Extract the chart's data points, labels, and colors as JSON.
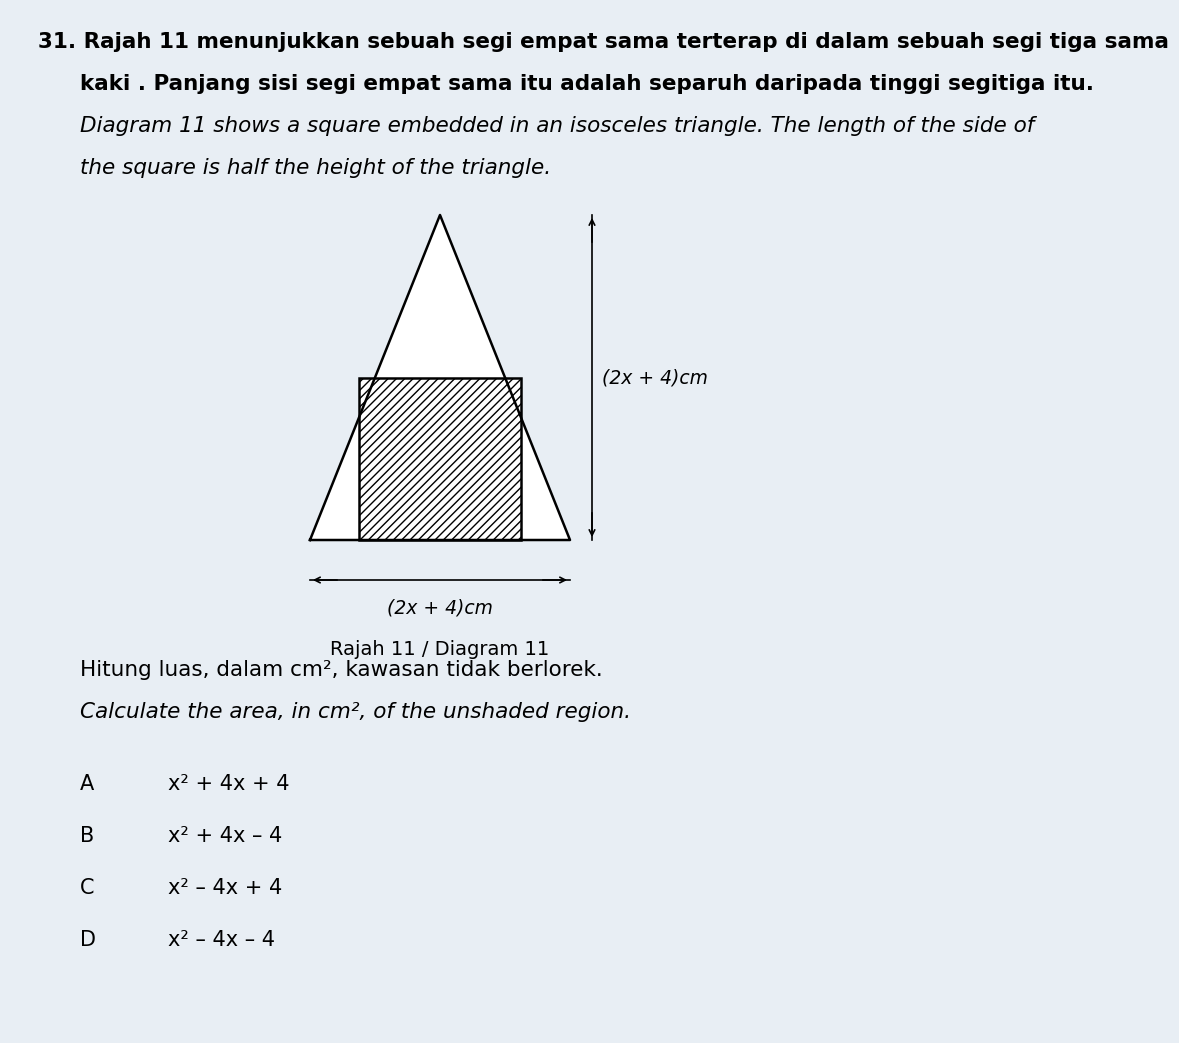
{
  "background_color": "#e8eef4",
  "question_number": "31.",
  "text_line1": "Rajah 11 menunjukkan sebuah segi empat sama terterap di dalam sebuah segi tiga sama",
  "text_line2": "kaki . Panjang sisi segi empat sama itu adalah separuh daripada tinggi segitiga itu.",
  "text_line3": "Diagram 11 shows a square embedded in an isosceles triangle. The length of the side of",
  "text_line4": "the square is half the height of the triangle.",
  "diagram_label": "Rajah 11 / Diagram 11",
  "label_horizontal": "(2x + 4)cm",
  "label_vertical": "(2x + 4)cm",
  "question_malay": "Hitung luas, dalam cm², kawasan tidak berlorek.",
  "question_english": "Calculate the area, in cm², of the unshaded region.",
  "options": [
    {
      "letter": "A",
      "expr": "x² + 4x + 4"
    },
    {
      "letter": "B",
      "expr": "x² + 4x – 4"
    },
    {
      "letter": "C",
      "expr": "x² – 4x + 4"
    },
    {
      "letter": "D",
      "expr": "x² – 4x – 4"
    }
  ],
  "hatch_pattern": "////",
  "line_width": 1.8,
  "font_size_text": 15.5,
  "font_size_label": 13.5,
  "font_size_options": 15,
  "font_size_diagram_label": 14
}
